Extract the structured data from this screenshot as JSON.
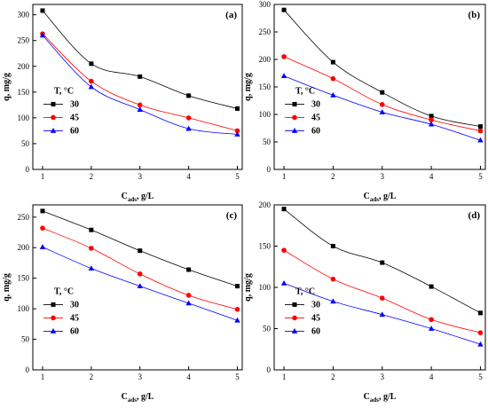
{
  "chart_data": [
    {
      "type": "line",
      "panel_label": "(a)",
      "x": [
        1,
        2,
        3,
        4,
        5
      ],
      "xlabel_main": "C",
      "xlabel_sub": "ads",
      "xlabel_tail": ", g/L",
      "ylabel": "q, mg/g",
      "xlim": [
        0.8,
        5.1
      ],
      "ylim": [
        0,
        320
      ],
      "xticks": [
        1,
        2,
        3,
        4,
        5
      ],
      "yticks": [
        0,
        50,
        100,
        150,
        200,
        250,
        300
      ],
      "legend_title": "T, °C",
      "legend_position": "center-left",
      "series": [
        {
          "name": "30",
          "color": "#000000",
          "marker": "square",
          "values": [
            308,
            205,
            180,
            143,
            118
          ]
        },
        {
          "name": "45",
          "color": "#ff0000",
          "marker": "circle",
          "values": [
            263,
            171,
            125,
            100,
            75
          ]
        },
        {
          "name": "60",
          "color": "#0000ff",
          "marker": "triangle",
          "values": [
            260,
            160,
            116,
            79,
            68
          ]
        }
      ]
    },
    {
      "type": "line",
      "panel_label": "(b)",
      "x": [
        1,
        2,
        3,
        4,
        5
      ],
      "xlabel_main": "C",
      "xlabel_sub": "ads",
      "xlabel_tail": ", g/L",
      "ylabel": "q, mg/g",
      "xlim": [
        0.8,
        5.1
      ],
      "ylim": [
        0,
        300
      ],
      "xticks": [
        1,
        2,
        3,
        4,
        5
      ],
      "yticks": [
        0,
        50,
        100,
        150,
        200,
        250,
        300
      ],
      "legend_title": "T, °C",
      "legend_position": "center-left",
      "series": [
        {
          "name": "30",
          "color": "#000000",
          "marker": "square",
          "values": [
            290,
            195,
            140,
            97,
            78
          ]
        },
        {
          "name": "45",
          "color": "#ff0000",
          "marker": "circle",
          "values": [
            205,
            165,
            118,
            90,
            70
          ]
        },
        {
          "name": "60",
          "color": "#0000ff",
          "marker": "triangle",
          "values": [
            170,
            135,
            104,
            82,
            53
          ]
        }
      ]
    },
    {
      "type": "line",
      "panel_label": "(c)",
      "x": [
        1,
        2,
        3,
        4,
        5
      ],
      "xlabel_main": "C",
      "xlabel_sub": "ads",
      "xlabel_tail": ", g/L",
      "ylabel": "q, mg/g",
      "xlim": [
        0.8,
        5.1
      ],
      "ylim": [
        0,
        270
      ],
      "xticks": [
        1,
        2,
        3,
        4,
        5
      ],
      "yticks": [
        0,
        50,
        100,
        150,
        200,
        250
      ],
      "legend_title": "T, °C",
      "legend_position": "center-left",
      "series": [
        {
          "name": "30",
          "color": "#000000",
          "marker": "square",
          "values": [
            260,
            229,
            195,
            164,
            137
          ]
        },
        {
          "name": "45",
          "color": "#ff0000",
          "marker": "circle",
          "values": [
            232,
            199,
            157,
            122,
            99
          ]
        },
        {
          "name": "60",
          "color": "#0000ff",
          "marker": "triangle",
          "values": [
            201,
            166,
            137,
            109,
            81
          ]
        }
      ]
    },
    {
      "type": "line",
      "panel_label": "(d)",
      "x": [
        1,
        2,
        3,
        4,
        5
      ],
      "xlabel_main": "C",
      "xlabel_sub": "ads",
      "xlabel_tail": ", g/L",
      "ylabel": "q, mg/g",
      "xlim": [
        0.8,
        5.1
      ],
      "ylim": [
        0,
        200
      ],
      "xticks": [
        1,
        2,
        3,
        4,
        5
      ],
      "yticks": [
        0,
        50,
        100,
        150,
        200
      ],
      "legend_title": "T, °C",
      "legend_position": "center-left",
      "series": [
        {
          "name": "30",
          "color": "#000000",
          "marker": "square",
          "values": [
            195,
            150,
            130,
            101,
            69
          ]
        },
        {
          "name": "45",
          "color": "#ff0000",
          "marker": "circle",
          "values": [
            145,
            110,
            87,
            61,
            45
          ]
        },
        {
          "name": "60",
          "color": "#0000ff",
          "marker": "triangle",
          "values": [
            105,
            83,
            67,
            50,
            31
          ]
        }
      ]
    }
  ]
}
